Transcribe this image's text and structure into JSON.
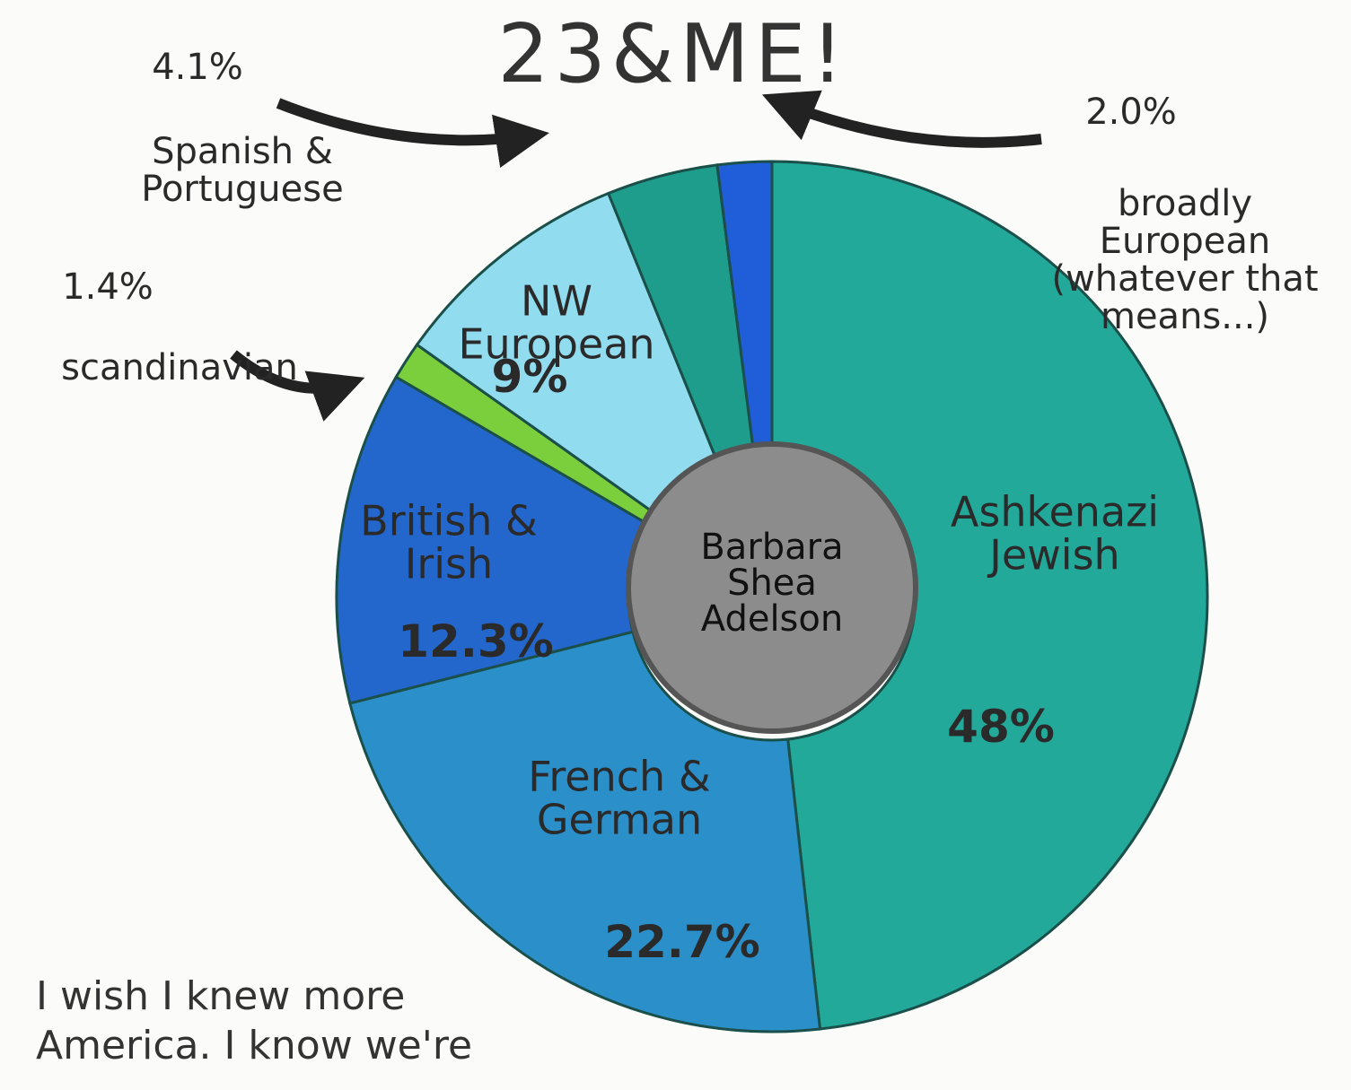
{
  "chart_data": {
    "type": "pie",
    "title": "23&ME!",
    "center_label": "Barbara Shea Adelson",
    "categories": [
      "Ashkenazi Jewish",
      "French & German",
      "British & Irish",
      "scandinavian",
      "NW European",
      "Spanish & Portuguese",
      "broadly European (whatever that means...)"
    ],
    "values": [
      48,
      22.7,
      12.3,
      1.4,
      9,
      4.1,
      2.0
    ],
    "value_labels": [
      "48%",
      "22.7%",
      "12.3%",
      "1.4%",
      "9%",
      "4.1%",
      "2.0%"
    ],
    "colors": [
      "#22a99a",
      "#2b8fca",
      "#2467cc",
      "#7ccf3c",
      "#91dcef",
      "#1e9d8c",
      "#1f5ed8"
    ],
    "notes": [
      "I wish I knew more",
      "America. I know we're"
    ]
  }
}
